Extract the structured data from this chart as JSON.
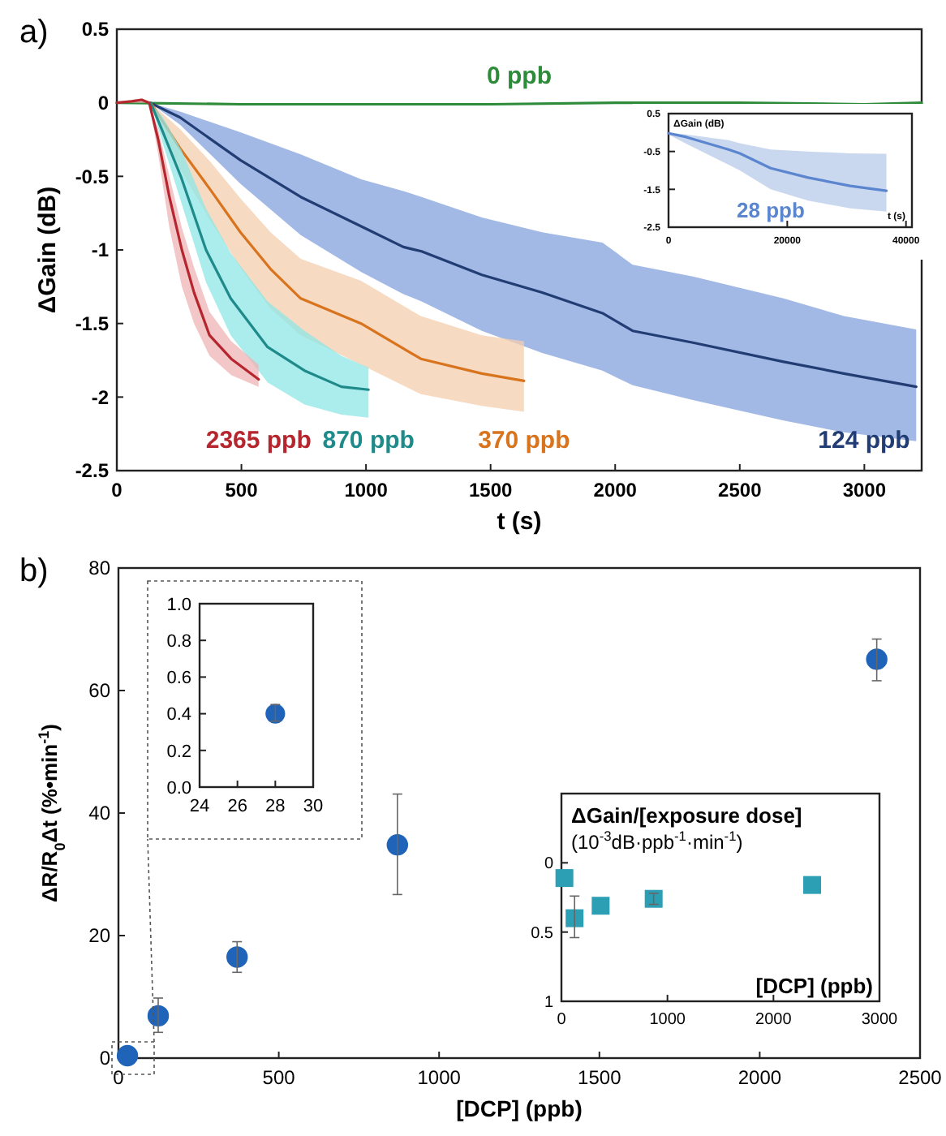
{
  "chart_data": [
    {
      "type": "line",
      "title": "a)",
      "xlabel": "t (s)",
      "ylabel": "ΔGain (dB)",
      "xlim": [
        0,
        3230
      ],
      "ylim": [
        -2.5,
        0.5
      ],
      "xticks": [
        0,
        500,
        1000,
        1500,
        2000,
        2500,
        3000
      ],
      "yticks": [
        -2.5,
        -2,
        -1.5,
        -1,
        -0.5,
        0,
        0.5
      ],
      "series": [
        {
          "name": "0 ppb",
          "color": "#2e8b3a",
          "x": [
            0,
            500,
            1000,
            1500,
            2000,
            2500,
            3000,
            3230
          ],
          "values": [
            0,
            -0.01,
            -0.01,
            -0.01,
            0,
            0,
            -0.01,
            0
          ]
        },
        {
          "name": "124 ppb",
          "color": "#213d73",
          "x": [
            133,
            254,
            496,
            738,
            981,
            1150,
            1223,
            1465,
            1707,
            1949,
            2070,
            2312,
            2676,
            2918,
            3208
          ],
          "values": [
            0,
            -0.1,
            -0.39,
            -0.64,
            -0.84,
            -0.98,
            -1.01,
            -1.17,
            -1.29,
            -1.43,
            -1.55,
            -1.63,
            -1.76,
            -1.84,
            -1.93
          ],
          "lower": [
            0,
            -0.15,
            -0.55,
            -0.9,
            -1.15,
            -1.3,
            -1.35,
            -1.55,
            -1.7,
            -1.82,
            -1.92,
            -2.02,
            -2.16,
            -2.24,
            -2.3
          ],
          "upper": [
            0,
            -0.06,
            -0.2,
            -0.35,
            -0.52,
            -0.6,
            -0.64,
            -0.78,
            -0.88,
            -0.95,
            -1.1,
            -1.18,
            -1.33,
            -1.45,
            -1.54
          ]
        },
        {
          "name": "370 ppb",
          "color": "#d8731e",
          "x": [
            136,
            254,
            375,
            496,
            617,
            738,
            980,
            1220,
            1465,
            1634
          ],
          "values": [
            0,
            -0.31,
            -0.59,
            -0.88,
            -1.13,
            -1.33,
            -1.5,
            -1.74,
            -1.84,
            -1.89
          ],
          "lower": [
            0,
            -0.45,
            -0.8,
            -1.12,
            -1.4,
            -1.58,
            -1.78,
            -1.98,
            -2.06,
            -2.1
          ],
          "upper": [
            0,
            -0.18,
            -0.4,
            -0.65,
            -0.88,
            -1.06,
            -1.21,
            -1.45,
            -1.58,
            -1.62
          ]
        },
        {
          "name": "870 ppb",
          "color": "#1f8a8a",
          "x": [
            136,
            185,
            259,
            358,
            457,
            605,
            753,
            901,
            1010
          ],
          "values": [
            0,
            -0.2,
            -0.51,
            -1.0,
            -1.33,
            -1.66,
            -1.82,
            -1.93,
            -1.95
          ],
          "lower": [
            0,
            -0.28,
            -0.68,
            -1.22,
            -1.58,
            -1.9,
            -2.05,
            -2.12,
            -2.14
          ],
          "upper": [
            0,
            -0.1,
            -0.32,
            -0.72,
            -1.02,
            -1.35,
            -1.55,
            -1.72,
            -1.8
          ]
        },
        {
          "name": "2365 ppb",
          "color": "#b5262e",
          "x": [
            0,
            60,
            100,
            130,
            166,
            211,
            261,
            310,
            372,
            459,
            569
          ],
          "values": [
            0,
            0.01,
            0.02,
            0,
            -0.25,
            -0.64,
            -1.0,
            -1.29,
            -1.58,
            -1.74,
            -1.88
          ],
          "lower": [
            0,
            0,
            0,
            0,
            -0.35,
            -0.85,
            -1.25,
            -1.5,
            -1.72,
            -1.85,
            -1.93
          ],
          "upper": [
            0,
            0.02,
            0.03,
            0,
            -0.18,
            -0.5,
            -0.85,
            -1.12,
            -1.42,
            -1.62,
            -1.78
          ]
        }
      ]
    },
    {
      "type": "line",
      "xlabel": "t (s)",
      "ylabel": "ΔGain (dB)",
      "xlim": [
        0,
        41000
      ],
      "ylim": [
        -2.5,
        0.5
      ],
      "xticks": [
        0,
        20000,
        40000
      ],
      "yticks": [
        -2.5,
        -1.5,
        -0.5,
        0.5
      ],
      "series": [
        {
          "name": "28 ppb",
          "color": "#5b86cf",
          "x": [
            0,
            3000,
            10100,
            12000,
            17200,
            23500,
            30600,
            36700
          ],
          "values": [
            -0.02,
            -0.12,
            -0.45,
            -0.55,
            -0.94,
            -1.19,
            -1.41,
            -1.54
          ],
          "lower": [
            -0.05,
            -0.3,
            -0.85,
            -1.0,
            -1.5,
            -1.8,
            -2.0,
            -2.09
          ],
          "upper": [
            0,
            -0.05,
            -0.2,
            -0.28,
            -0.45,
            -0.5,
            -0.55,
            -0.56
          ]
        }
      ]
    },
    {
      "type": "scatter",
      "title": "b)",
      "xlabel": "[DCP] (ppb)",
      "ylabel": "ΔR/R$_{0}$Δt  (%•min$^{-1}$)",
      "xlim": [
        0,
        2500
      ],
      "ylim": [
        0,
        80
      ],
      "xticks": [
        0,
        500,
        1000,
        1500,
        2000,
        2500
      ],
      "yticks": [
        0,
        20,
        40,
        60,
        80
      ],
      "marker": "circle",
      "series": [
        {
          "color": "#1f64b8",
          "x": [
            28,
            124,
            370,
            870,
            2365
          ],
          "values": [
            0.4,
            6.9,
            16.5,
            34.8,
            65.1
          ],
          "errors": [
            null,
            [
              4.2,
              9.8
            ],
            [
              14,
              19
            ],
            [
              26.7,
              43.1
            ],
            [
              61.6,
              68.4
            ]
          ]
        }
      ]
    },
    {
      "type": "scatter",
      "xlim": [
        24,
        30
      ],
      "ylim": [
        0,
        1
      ],
      "xticks": [
        24,
        26,
        28,
        30
      ],
      "yticks": [
        {
          "value": 0,
          "label": "0.0"
        },
        {
          "value": 0.2,
          "label": "0.2"
        },
        {
          "value": 0.4,
          "label": "0.4"
        },
        {
          "value": 0.6,
          "label": "0.6"
        },
        {
          "value": 0.8,
          "label": "0.8"
        },
        {
          "value": 1,
          "label": "1.0"
        }
      ],
      "marker": "circle",
      "series": [
        {
          "color": "#1f64b8",
          "x": [
            28
          ],
          "values": [
            0.4
          ],
          "errors": [
            [
              0.36,
              0.45
            ]
          ]
        }
      ]
    },
    {
      "type": "scatter",
      "title": "ΔGain/[exposure dose]",
      "subtitle": "(10$^{-3}$dB·ppb$^{-1}$·min$^{-1}$)",
      "xlabel": "[DCP] (ppb)",
      "xlim": [
        0,
        3000
      ],
      "ylim": [
        1,
        -0.5
      ],
      "xticks": [
        0,
        1000,
        2000,
        3000
      ],
      "yticks": [
        0,
        0.5,
        1
      ],
      "marker": "square",
      "series": [
        {
          "color": "#2c9fb5",
          "x": [
            28,
            124,
            370,
            870,
            2365
          ],
          "values": [
            0.11,
            0.4,
            0.31,
            0.26,
            0.16
          ],
          "errors": [
            null,
            [
              0.24,
              0.54
            ],
            null,
            [
              0.22,
              0.3
            ],
            null
          ]
        }
      ]
    }
  ]
}
